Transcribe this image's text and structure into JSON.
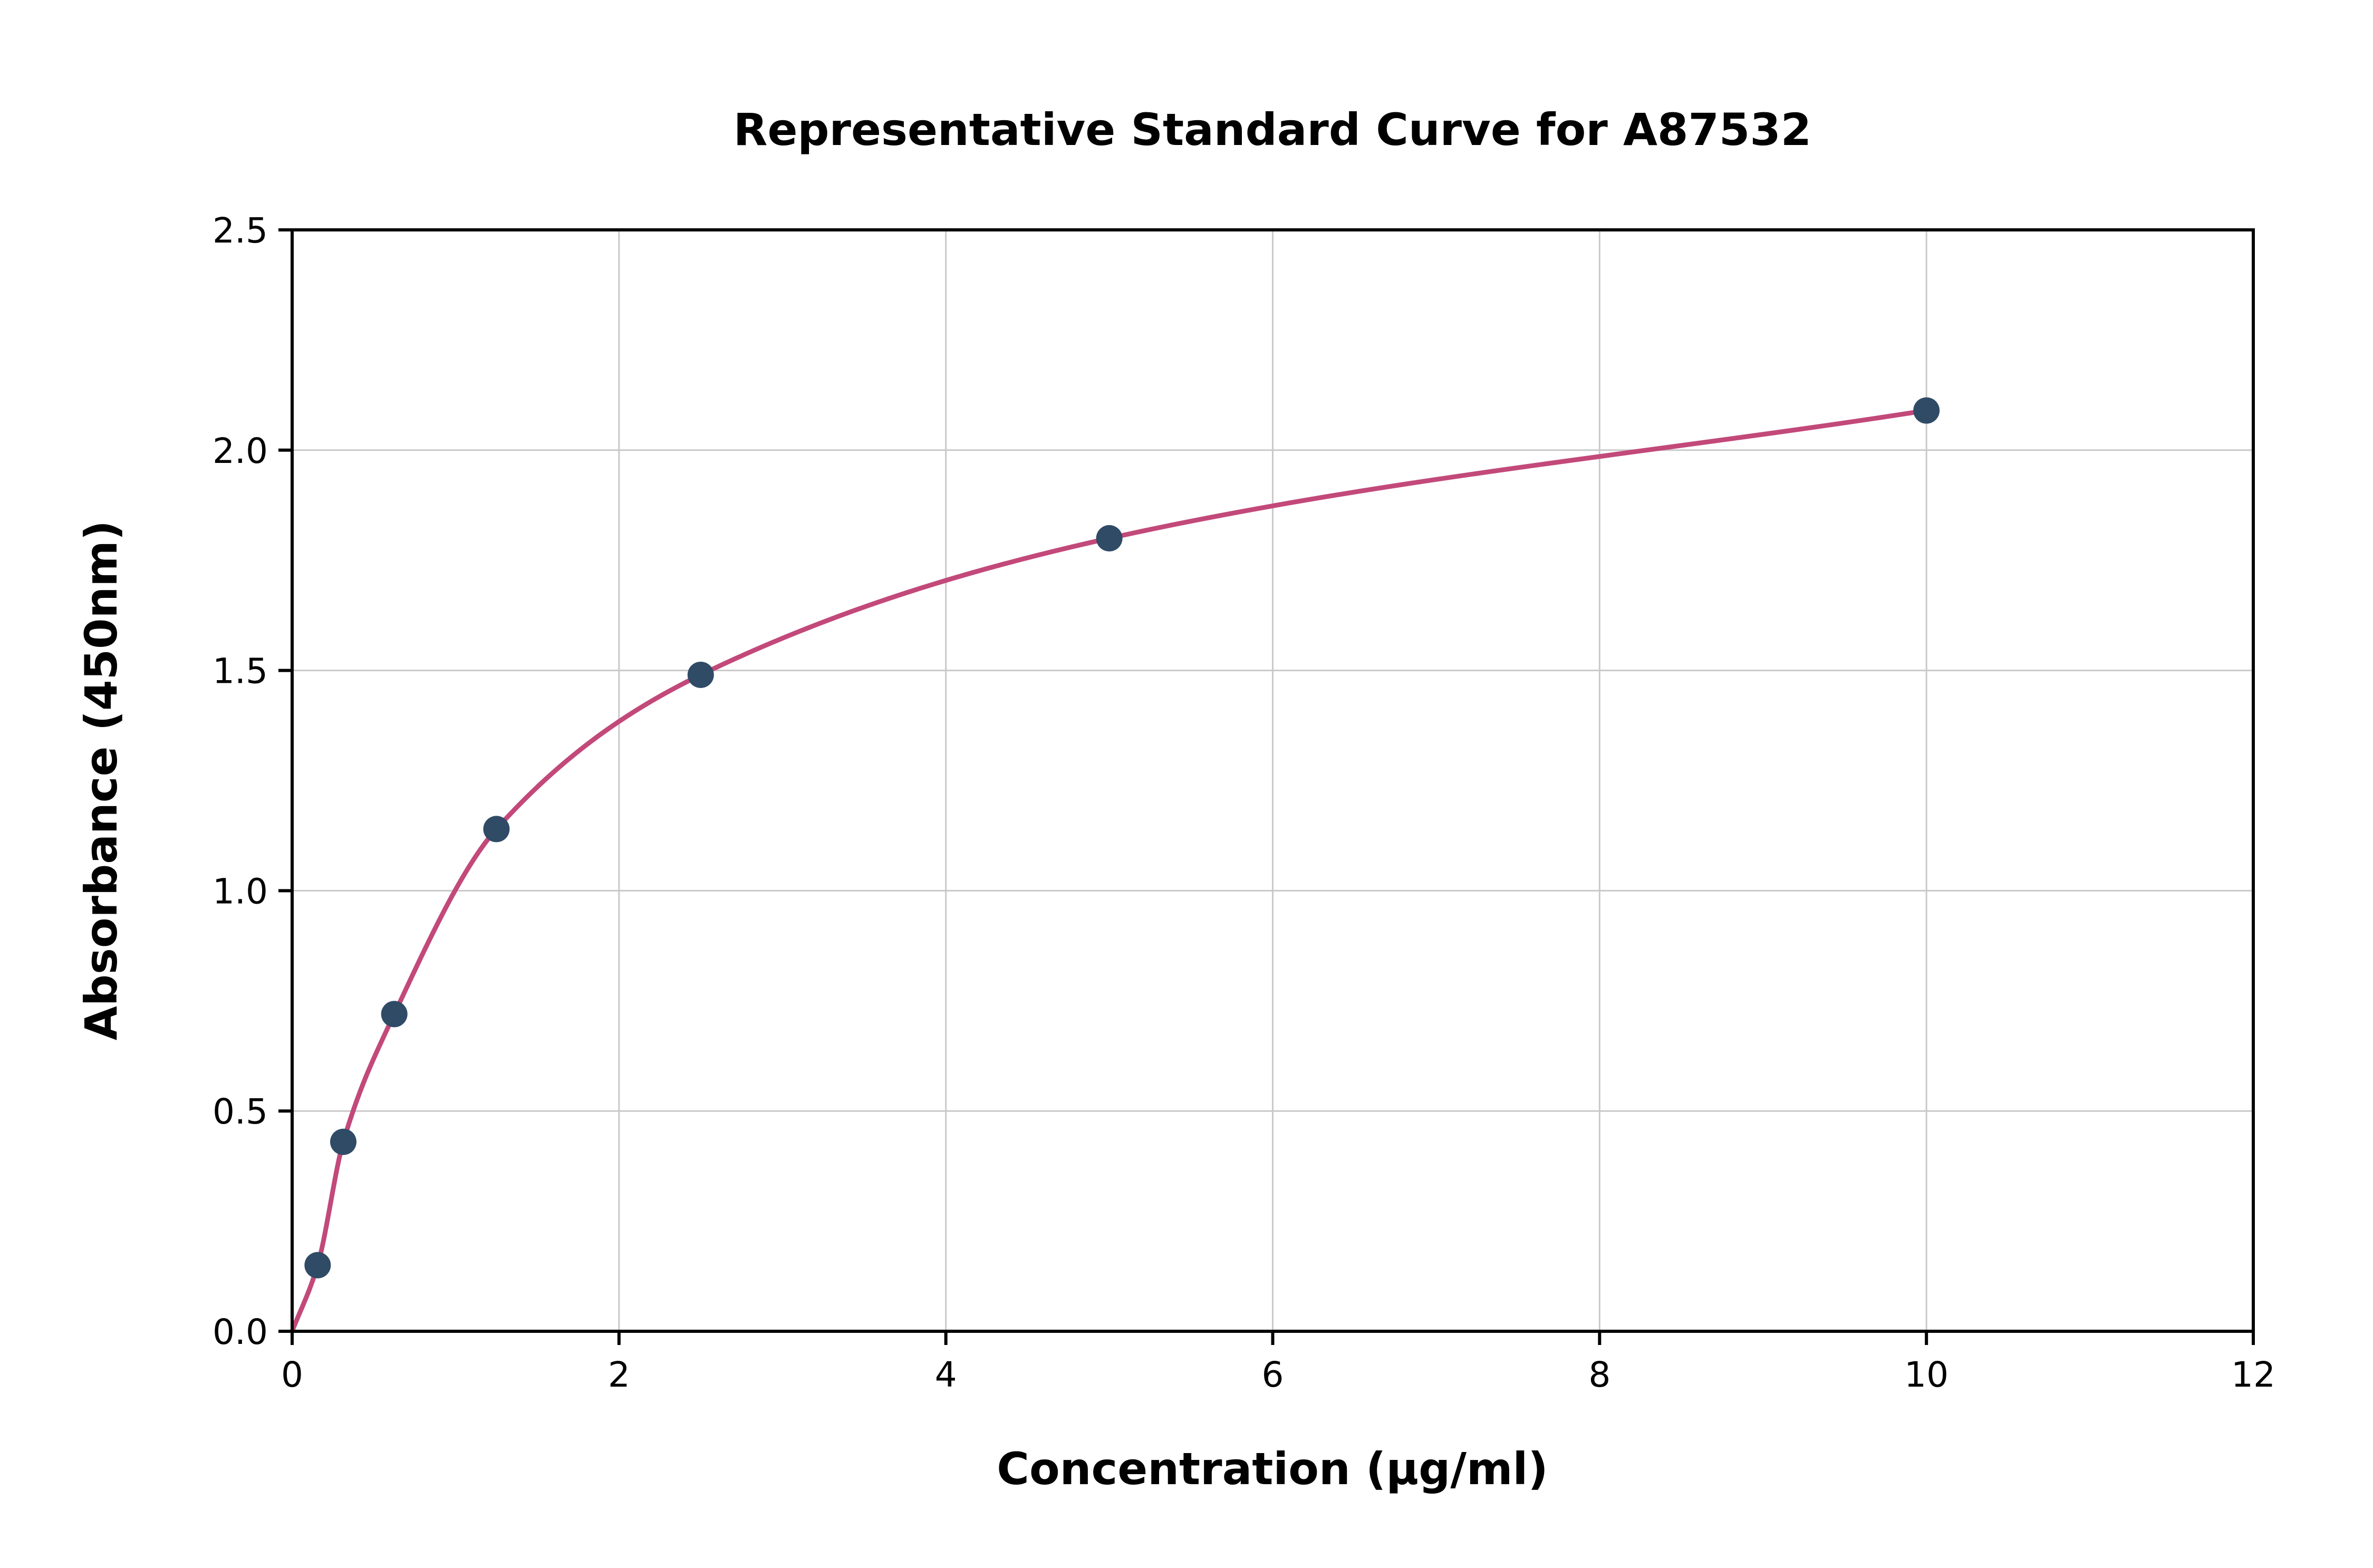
{
  "chart_data": {
    "type": "scatter",
    "title": "Representative Standard Curve for A87532",
    "xlabel": "Concentration (µg/ml)",
    "ylabel": "Absorbance (450nm)",
    "xlim": [
      0,
      12
    ],
    "ylim": [
      0,
      2.5
    ],
    "x_ticks": [
      0,
      2,
      4,
      6,
      8,
      10,
      12
    ],
    "x_tick_labels": [
      "0",
      "2",
      "4",
      "6",
      "8",
      "10",
      "12"
    ],
    "y_ticks": [
      0,
      0.5,
      1,
      1.5,
      2,
      2.5
    ],
    "y_tick_labels": [
      "0.0",
      "0.5",
      "1.0",
      "1.5",
      "2.0",
      "2.5"
    ],
    "grid": true,
    "legend": "none",
    "points": {
      "name": "standard-points",
      "color": "#2f4b66",
      "x": [
        0.156,
        0.313,
        0.625,
        1.25,
        2.5,
        5,
        10
      ],
      "y": [
        0.15,
        0.43,
        0.72,
        1.14,
        1.49,
        1.8,
        2.09
      ]
    },
    "fit_curve": {
      "name": "fitted-standard-curve",
      "color": "#c2497a",
      "x": [
        0,
        0.156,
        0.313,
        0.625,
        1.25,
        2.5,
        5,
        10
      ],
      "y": [
        0,
        0.15,
        0.43,
        0.72,
        1.14,
        1.49,
        1.8,
        2.09
      ]
    },
    "style": {
      "grid_color": "#c9c9c9",
      "axis_color": "#000000",
      "background": "#ffffff",
      "point_radius": 25,
      "curve_width": 9
    }
  }
}
